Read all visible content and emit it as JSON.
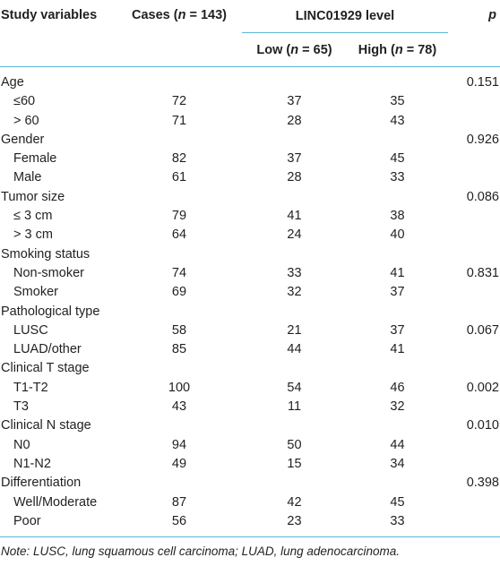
{
  "header": {
    "col_variables": "Study variables",
    "col_cases_prefix": "Cases (",
    "col_cases_n": "n",
    "col_cases_suffix": " = 143)",
    "col_level": "LINC01929 level",
    "col_p": "p",
    "low_prefix": "Low (",
    "low_n": "n",
    "low_suffix": " = 65)",
    "high_prefix": "High (",
    "high_n": "n",
    "high_suffix": " = 78)"
  },
  "rows": [
    {
      "label": "Age",
      "child": false,
      "cases": "",
      "low": "",
      "high": "",
      "p": "0.151"
    },
    {
      "label": "≤60",
      "child": true,
      "cases": "72",
      "low": "37",
      "high": "35",
      "p": ""
    },
    {
      "label": "> 60",
      "child": true,
      "cases": "71",
      "low": "28",
      "high": "43",
      "p": ""
    },
    {
      "label": "Gender",
      "child": false,
      "cases": "",
      "low": "",
      "high": "",
      "p": "0.926"
    },
    {
      "label": "Female",
      "child": true,
      "cases": "82",
      "low": "37",
      "high": "45",
      "p": ""
    },
    {
      "label": "Male",
      "child": true,
      "cases": "61",
      "low": "28",
      "high": "33",
      "p": ""
    },
    {
      "label": "Tumor size",
      "child": false,
      "cases": "",
      "low": "",
      "high": "",
      "p": "0.086"
    },
    {
      "label": "≤ 3 cm",
      "child": true,
      "cases": "79",
      "low": "41",
      "high": "38",
      "p": ""
    },
    {
      "label": "> 3 cm",
      "child": true,
      "cases": "64",
      "low": "24",
      "high": "40",
      "p": ""
    },
    {
      "label": "Smoking status",
      "child": false,
      "cases": "",
      "low": "",
      "high": "",
      "p": ""
    },
    {
      "label": "Non-smoker",
      "child": true,
      "cases": "74",
      "low": "33",
      "high": "41",
      "p": "0.831"
    },
    {
      "label": "Smoker",
      "child": true,
      "cases": "69",
      "low": "32",
      "high": "37",
      "p": ""
    },
    {
      "label": "Pathological type",
      "child": false,
      "cases": "",
      "low": "",
      "high": "",
      "p": ""
    },
    {
      "label": "LUSC",
      "child": true,
      "cases": "58",
      "low": "21",
      "high": "37",
      "p": "0.067"
    },
    {
      "label": "LUAD/other",
      "child": true,
      "cases": "85",
      "low": "44",
      "high": "41",
      "p": ""
    },
    {
      "label": "Clinical T stage",
      "child": false,
      "cases": "",
      "low": "",
      "high": "",
      "p": ""
    },
    {
      "label": "T1-T2",
      "child": true,
      "cases": "100",
      "low": "54",
      "high": "46",
      "p": "0.002"
    },
    {
      "label": "T3",
      "child": true,
      "cases": "43",
      "low": "11",
      "high": "32",
      "p": ""
    },
    {
      "label": "Clinical N stage",
      "child": false,
      "cases": "",
      "low": "",
      "high": "",
      "p": "0.010"
    },
    {
      "label": "N0",
      "child": true,
      "cases": "94",
      "low": "50",
      "high": "44",
      "p": ""
    },
    {
      "label": "N1-N2",
      "child": true,
      "cases": "49",
      "low": "15",
      "high": "34",
      "p": ""
    },
    {
      "label": "Differentiation",
      "child": false,
      "cases": "",
      "low": "",
      "high": "",
      "p": "0.398"
    },
    {
      "label": "Well/Moderate",
      "child": true,
      "cases": "87",
      "low": "42",
      "high": "45",
      "p": ""
    },
    {
      "label": "Poor",
      "child": true,
      "cases": "56",
      "low": "23",
      "high": "33",
      "p": ""
    }
  ],
  "note": "Note: LUSC, lung squamous cell carcinoma; LUAD, lung adenocarcinoma.",
  "colors": {
    "rule": "#5bb4d8",
    "text": "#231f20"
  }
}
